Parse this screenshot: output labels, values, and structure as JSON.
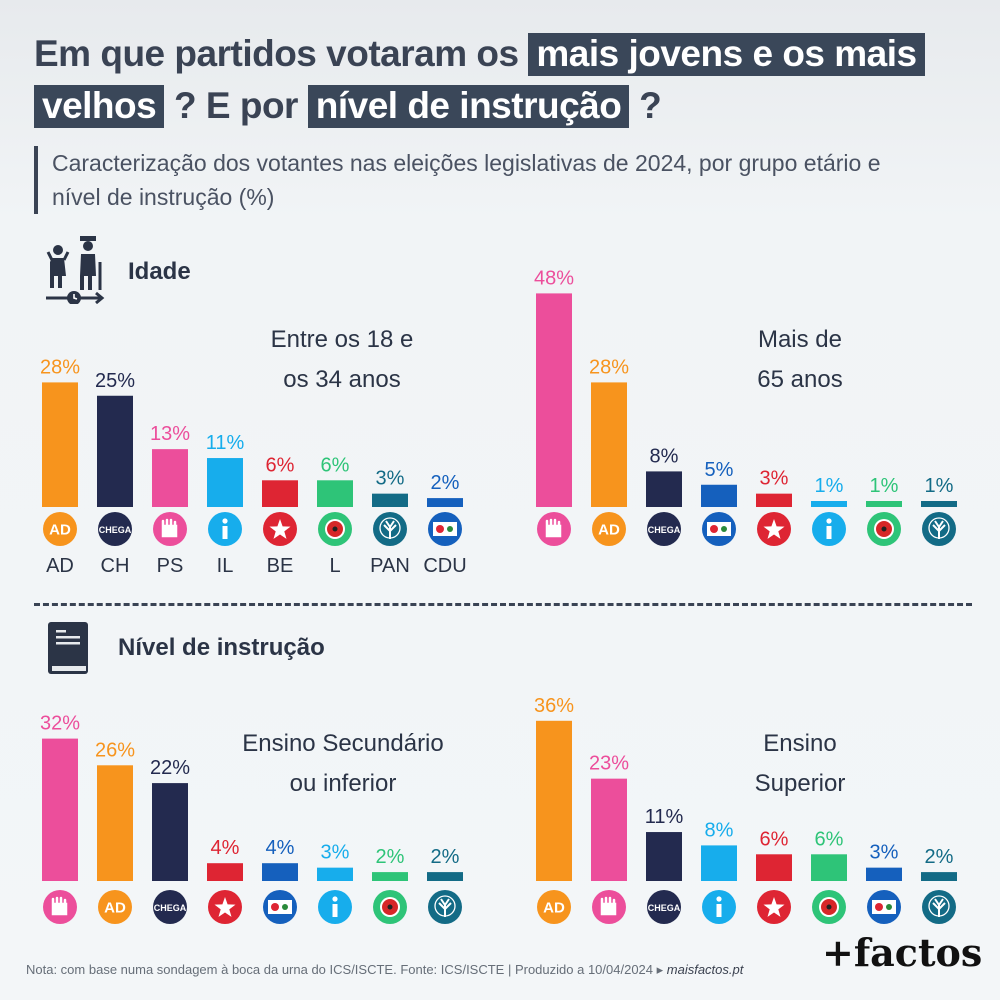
{
  "title": {
    "part1": "Em que partidos votaram os",
    "hl1": "mais jovens e os mais",
    "hl2": "velhos",
    "part2": "? E por",
    "hl3": "nível de instrução",
    "part3": "?"
  },
  "subtitle": "Caracterização dos votantes nas eleições legislativas de 2024, por grupo etário e nível de instrução (%)",
  "sections": {
    "age": "Idade",
    "education": "Nível de instrução"
  },
  "party_colors": {
    "AD": "#f7941d",
    "CH": "#232a4f",
    "PS": "#ec4e9b",
    "IL": "#17adec",
    "BE": "#de2533",
    "L": "#2ec478",
    "PAN": "#136b86",
    "CDU": "#1560bd"
  },
  "chart_data": [
    {
      "type": "bar",
      "title_pre": "Entre os ",
      "title_bold": "18 e\nos 34 anos",
      "title_text": "Entre os 18 e\nos 34 anos",
      "categories": [
        "AD",
        "CH",
        "PS",
        "IL",
        "BE",
        "L",
        "PAN",
        "CDU"
      ],
      "values": [
        28,
        25,
        13,
        11,
        6,
        6,
        3,
        2
      ],
      "labels": [
        "28%",
        "25%",
        "13%",
        "11%",
        "6%",
        "6%",
        "3%",
        "2%"
      ],
      "show_category_text": true
    },
    {
      "type": "bar",
      "title_text": "Mais de\n65 anos",
      "categories": [
        "PS",
        "AD",
        "CH",
        "CDU",
        "BE",
        "IL",
        "L",
        "PAN"
      ],
      "values": [
        48,
        28,
        8,
        5,
        3,
        1,
        1,
        1
      ],
      "labels": [
        "48%",
        "28%",
        "8%",
        "5%",
        "3%",
        "1%",
        "1%",
        "1%"
      ],
      "show_category_text": false
    },
    {
      "type": "bar",
      "title_text": "Ensino Secundário\nou inferior",
      "categories": [
        "PS",
        "AD",
        "CH",
        "BE",
        "CDU",
        "IL",
        "L",
        "PAN"
      ],
      "values": [
        32,
        26,
        22,
        4,
        4,
        3,
        2,
        2
      ],
      "labels": [
        "32%",
        "26%",
        "22%",
        "4%",
        "4%",
        "3%",
        "2%",
        "2%"
      ],
      "show_category_text": false
    },
    {
      "type": "bar",
      "title_text": "Ensino\nSuperior",
      "categories": [
        "AD",
        "PS",
        "CH",
        "IL",
        "BE",
        "L",
        "CDU",
        "PAN"
      ],
      "values": [
        36,
        23,
        11,
        8,
        6,
        6,
        3,
        2
      ],
      "labels": [
        "36%",
        "23%",
        "11%",
        "8%",
        "6%",
        "6%",
        "3%",
        "2%"
      ],
      "show_category_text": false
    }
  ],
  "footnote": {
    "text": "Nota: com base numa sondagem à boca da urna do ICS/ISCTE. Fonte: ICS/ISCTE | Produzido a 10/04/2024 ▸ ",
    "site": "maisfactos.pt"
  },
  "logo": "+factos",
  "icon_labels": {
    "AD": "AD",
    "CH": "CHEGA"
  }
}
